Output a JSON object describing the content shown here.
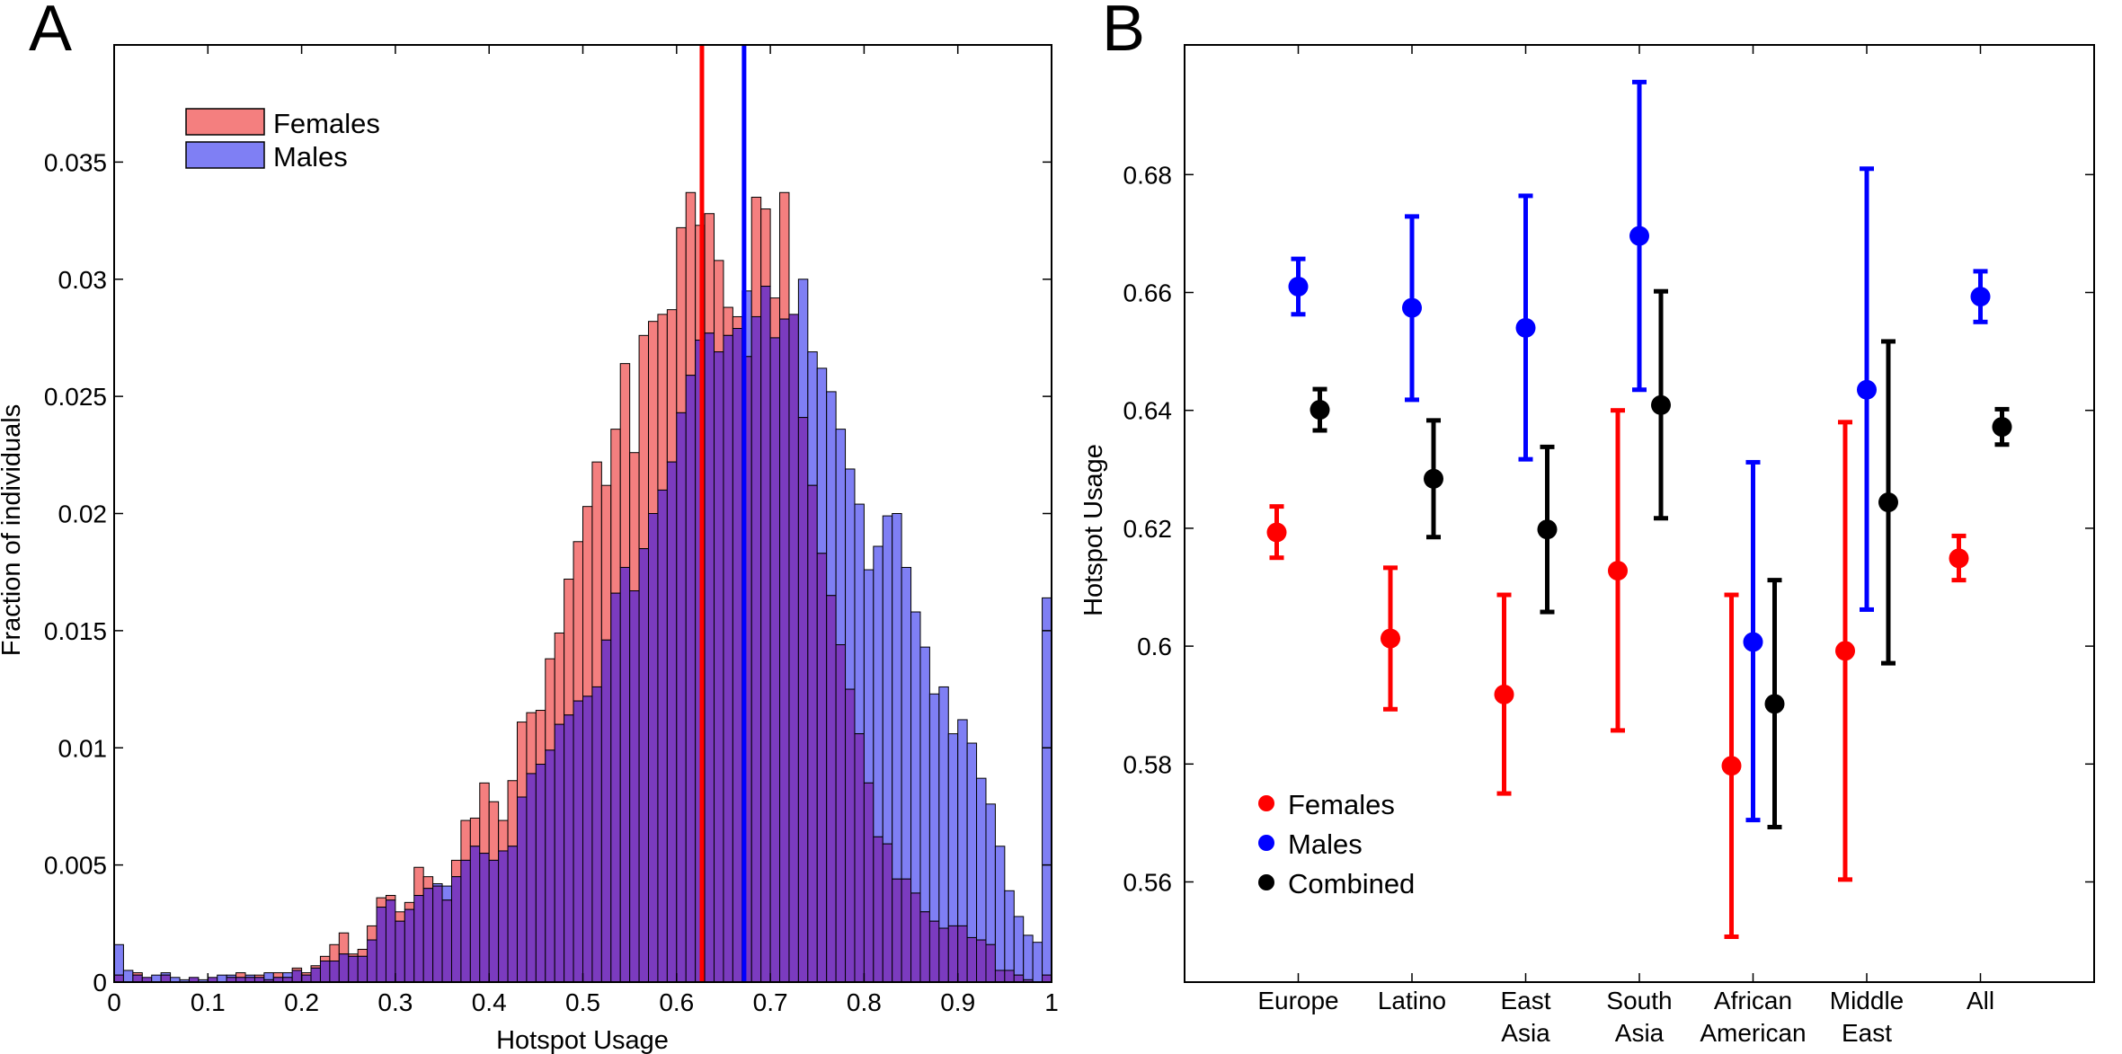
{
  "panels": {
    "a": "A",
    "b": "B"
  },
  "colors": {
    "female": "#ff0000",
    "male": "#0000ff",
    "combined": "#000000",
    "female_bar": "#f47f7f",
    "male_bar": "#7f7ff4",
    "overlap_bar": "#7b3bbf"
  },
  "chart_data": [
    {
      "type": "bar",
      "panel": "A",
      "xlabel": "Hotspot Usage",
      "ylabel": "Fraction of individuals",
      "xlim": [
        0,
        1
      ],
      "ylim": [
        0,
        0.04
      ],
      "bin_width": 0.01,
      "xticks": [
        "0",
        "0.1",
        "0.2",
        "0.3",
        "0.4",
        "0.5",
        "0.6",
        "0.7",
        "0.8",
        "0.9",
        "1"
      ],
      "yticks": [
        "0",
        "0.005",
        "0.01",
        "0.015",
        "0.02",
        "0.025",
        "0.03",
        "0.035"
      ],
      "legend": {
        "position": "top-left",
        "entries": [
          "Females",
          "Males"
        ]
      },
      "means": {
        "Females": 0.627,
        "Males": 0.672
      },
      "series": [
        {
          "name": "Females",
          "values": [
            0.0003,
            0,
            0.0004,
            0.0002,
            0,
            0.0003,
            0,
            0,
            0.0002,
            0,
            0.0002,
            0,
            0.0002,
            0.0004,
            0.0002,
            0.0003,
            0.0001,
            0.0004,
            0.0002,
            0.0006,
            0.0004,
            0.0007,
            0.0011,
            0.0016,
            0.0021,
            0.0012,
            0.0014,
            0.0024,
            0.0036,
            0.0037,
            0.003,
            0.0034,
            0.0049,
            0.0045,
            0.0041,
            0.0035,
            0.0052,
            0.0069,
            0.007,
            0.0085,
            0.0077,
            0.0069,
            0.0086,
            0.0111,
            0.0115,
            0.0116,
            0.0138,
            0.0149,
            0.0172,
            0.0188,
            0.0203,
            0.0222,
            0.0212,
            0.0236,
            0.0264,
            0.0226,
            0.0276,
            0.0282,
            0.0285,
            0.0287,
            0.0322,
            0.0337,
            0.0323,
            0.0328,
            0.0308,
            0.0288,
            0.0284,
            0.0267,
            0.0335,
            0.033,
            0.0292,
            0.0337,
            0.0285,
            0.0241,
            0.0212,
            0.0183,
            0.0165,
            0.0144,
            0.0125,
            0.0106,
            0.0085,
            0.0062,
            0.0059,
            0.0044,
            0.0044,
            0.0038,
            0.003,
            0.0026,
            0.0023,
            0.0024,
            0.0024,
            0.0019,
            0.0018,
            0.0016,
            0.0005,
            0.0005,
            0.0003,
            0.0001,
            0,
            0.0003
          ]
        },
        {
          "name": "Males",
          "values": [
            0.0016,
            0.0005,
            0.0003,
            0.0002,
            0.0003,
            0.0004,
            0.0002,
            0.0001,
            0.0002,
            0.0001,
            0.0002,
            0.0003,
            0.0003,
            0.0002,
            0.0003,
            0.0002,
            0.0004,
            0.0002,
            0.0004,
            0.0005,
            0.0003,
            0.0006,
            0.0009,
            0.0009,
            0.0012,
            0.0011,
            0.0011,
            0.0018,
            0.0032,
            0.0035,
            0.0026,
            0.0031,
            0.0037,
            0.004,
            0.0042,
            0.0041,
            0.0045,
            0.0052,
            0.0058,
            0.0055,
            0.0052,
            0.0056,
            0.0058,
            0.0079,
            0.0089,
            0.0093,
            0.0099,
            0.011,
            0.0114,
            0.012,
            0.0122,
            0.0126,
            0.0146,
            0.0166,
            0.0177,
            0.0167,
            0.0185,
            0.02,
            0.021,
            0.0222,
            0.0243,
            0.0259,
            0.0274,
            0.0277,
            0.0269,
            0.0276,
            0.0279,
            0.0295,
            0.0284,
            0.0297,
            0.0275,
            0.0283,
            0.0285,
            0.03,
            0.0269,
            0.0262,
            0.0252,
            0.0236,
            0.0219,
            0.0204,
            0.0176,
            0.0186,
            0.0199,
            0.02,
            0.0177,
            0.0158,
            0.0143,
            0.0123,
            0.0126,
            0.0106,
            0.0112,
            0.0102,
            0.0087,
            0.0076,
            0.0058,
            0.0039,
            0.0028,
            0.002,
            0.0017,
            0.0164
          ]
        }
      ]
    },
    {
      "type": "scatter",
      "panel": "B",
      "ylabel": "Hotspot Usage",
      "xlabel": "",
      "ylim": [
        0.543,
        0.702
      ],
      "yticks": [
        "0.56",
        "0.58",
        "0.6",
        "0.62",
        "0.64",
        "0.66",
        "0.68"
      ],
      "categories": [
        {
          "line1": "Europe",
          "line2": ""
        },
        {
          "line1": "Latino",
          "line2": ""
        },
        {
          "line1": "East",
          "line2": "Asia"
        },
        {
          "line1": "South",
          "line2": "Asia"
        },
        {
          "line1": "African",
          "line2": "American"
        },
        {
          "line1": "Middle",
          "line2": "East"
        },
        {
          "line1": "All",
          "line2": ""
        }
      ],
      "legend": {
        "position": "bottom-left",
        "entries": [
          "Females",
          "Males",
          "Combined"
        ]
      },
      "series": [
        {
          "name": "Females",
          "values": [
            0.6193,
            0.6013,
            0.5918,
            0.6128,
            0.5797,
            0.5992,
            0.6149
          ],
          "lower": [
            0.615,
            0.5893,
            0.575,
            0.5857,
            0.5507,
            0.5604,
            0.6112
          ],
          "upper": [
            0.6237,
            0.6133,
            0.6087,
            0.64,
            0.6087,
            0.638,
            0.6187
          ]
        },
        {
          "name": "Males",
          "values": [
            0.661,
            0.6574,
            0.654,
            0.6696,
            0.6007,
            0.6435,
            0.6593
          ],
          "lower": [
            0.6563,
            0.6418,
            0.6317,
            0.6435,
            0.5705,
            0.6062,
            0.655
          ],
          "upper": [
            0.6657,
            0.6729,
            0.6764,
            0.6957,
            0.6312,
            0.681,
            0.6636
          ]
        },
        {
          "name": "Combined",
          "values": [
            0.6401,
            0.6284,
            0.6198,
            0.6409,
            0.5902,
            0.6244,
            0.6372
          ],
          "lower": [
            0.6366,
            0.6185,
            0.6058,
            0.6217,
            0.5693,
            0.5971,
            0.6342
          ],
          "upper": [
            0.6436,
            0.6383,
            0.6338,
            0.6602,
            0.6112,
            0.6517,
            0.6402
          ]
        }
      ]
    }
  ]
}
